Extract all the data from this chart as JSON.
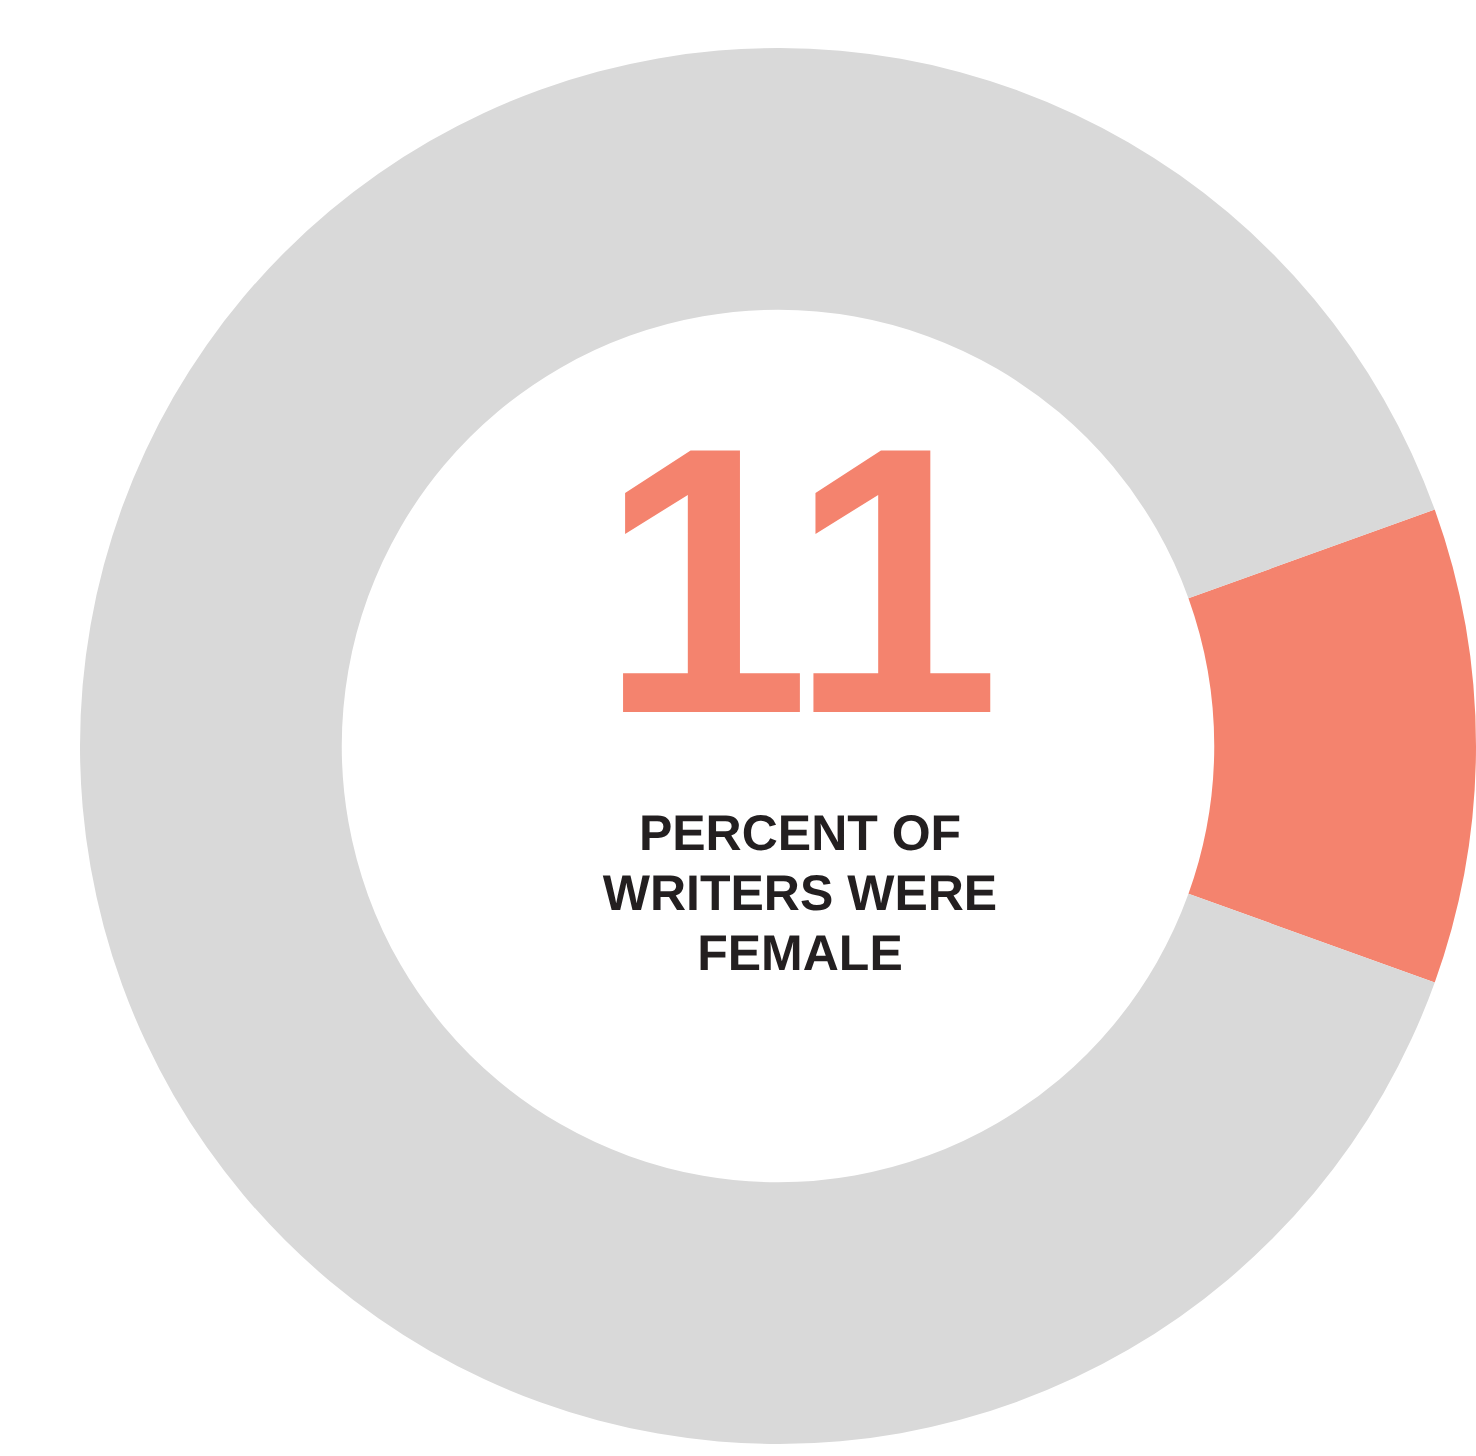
{
  "chart_data": {
    "type": "donut",
    "categories": [
      null,
      null
    ],
    "values": [
      11,
      89
    ],
    "colors": [
      "#f4836e",
      "#d9d9d9"
    ],
    "annotations": [
      "11",
      "PERCENT OF WRITERS WERE FEMALE"
    ],
    "legend": false
  }
}
